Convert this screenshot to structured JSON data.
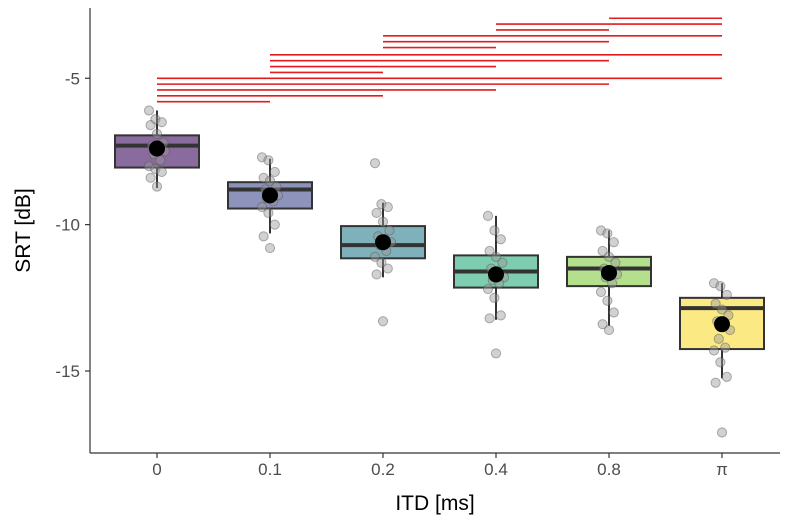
{
  "chart_data": {
    "type": "box",
    "xlabel": "ITD [ms]",
    "ylabel": "SRT [dB]",
    "ylim": [
      -17.8,
      -2.6
    ],
    "yticks": [
      -5,
      -10,
      -15
    ],
    "grid": false,
    "categories": [
      "0",
      "0.1",
      "0.2",
      "0.4",
      "0.8",
      "π"
    ],
    "colors": {
      "fills": [
        "#8a6b9e",
        "#8e93bb",
        "#7fb1bb",
        "#7ecdb0",
        "#b4e08e",
        "#fbe983"
      ],
      "outline": "#333333",
      "mean": "#000000",
      "points": "#9a9a9a",
      "significance": "#e41a1c"
    },
    "boxes": [
      {
        "q1": -8.05,
        "median": -7.3,
        "q3": -6.95,
        "whisker_low": -8.75,
        "whisker_high": -6.1,
        "mean": -7.4
      },
      {
        "q1": -9.45,
        "median": -8.8,
        "q3": -8.55,
        "whisker_low": -10.3,
        "whisker_high": -7.75,
        "mean": -9.0
      },
      {
        "q1": -11.15,
        "median": -10.7,
        "q3": -10.05,
        "whisker_low": -11.8,
        "whisker_high": -9.25,
        "mean": -10.6
      },
      {
        "q1": -12.15,
        "median": -11.6,
        "q3": -11.05,
        "whisker_low": -13.25,
        "whisker_high": -9.7,
        "mean": -11.7
      },
      {
        "q1": -12.1,
        "median": -11.5,
        "q3": -11.1,
        "whisker_low": -13.45,
        "whisker_high": -10.2,
        "mean": -11.65
      },
      {
        "q1": -14.25,
        "median": -12.85,
        "q3": -12.5,
        "whisker_low": -15.25,
        "whisker_high": -12.0,
        "mean": -13.4
      }
    ],
    "points": [
      [
        -6.1,
        -6.4,
        -6.5,
        -6.6,
        -6.9,
        -7.2,
        -7.3,
        -7.4,
        -7.5,
        -7.6,
        -7.8,
        -8.0,
        -8.1,
        -8.2,
        -8.4,
        -8.7
      ],
      [
        -7.7,
        -7.8,
        -8.2,
        -8.4,
        -8.5,
        -8.7,
        -8.8,
        -8.9,
        -9.0,
        -9.1,
        -9.2,
        -9.4,
        -9.6,
        -10.0,
        -10.4,
        -10.8
      ],
      [
        -7.9,
        -9.3,
        -9.4,
        -9.6,
        -9.9,
        -10.2,
        -10.4,
        -10.5,
        -10.6,
        -10.7,
        -10.9,
        -11.1,
        -11.3,
        -11.5,
        -11.7,
        -13.3
      ],
      [
        -9.7,
        -10.2,
        -10.5,
        -10.9,
        -11.1,
        -11.3,
        -11.5,
        -11.6,
        -11.8,
        -11.9,
        -12.0,
        -12.2,
        -12.5,
        -13.1,
        -13.2,
        -14.4
      ],
      [
        -10.2,
        -10.3,
        -10.6,
        -10.9,
        -11.1,
        -11.3,
        -11.5,
        -11.6,
        -11.7,
        -11.8,
        -12.0,
        -12.3,
        -12.6,
        -13.0,
        -13.4,
        -13.6
      ],
      [
        -12.0,
        -12.1,
        -12.4,
        -12.7,
        -12.9,
        -13.1,
        -13.3,
        -13.4,
        -13.6,
        -13.9,
        -14.2,
        -14.3,
        -14.7,
        -15.2,
        -15.4,
        -17.1
      ]
    ],
    "significance_bars": [
      {
        "from": 0,
        "to": 1,
        "y": -5.8
      },
      {
        "from": 0,
        "to": 2,
        "y": -5.6
      },
      {
        "from": 0,
        "to": 3,
        "y": -5.4
      },
      {
        "from": 0,
        "to": 4,
        "y": -5.2
      },
      {
        "from": 0,
        "to": 5,
        "y": -5.0
      },
      {
        "from": 1,
        "to": 2,
        "y": -4.8
      },
      {
        "from": 1,
        "to": 3,
        "y": -4.6
      },
      {
        "from": 1,
        "to": 4,
        "y": -4.4
      },
      {
        "from": 1,
        "to": 5,
        "y": -4.2
      },
      {
        "from": 2,
        "to": 3,
        "y": -3.95
      },
      {
        "from": 2,
        "to": 4,
        "y": -3.75
      },
      {
        "from": 2,
        "to": 5,
        "y": -3.55
      },
      {
        "from": 3,
        "to": 4,
        "y": -3.35
      },
      {
        "from": 3,
        "to": 5,
        "y": -3.15
      },
      {
        "from": 4,
        "to": 5,
        "y": -2.95
      }
    ]
  }
}
